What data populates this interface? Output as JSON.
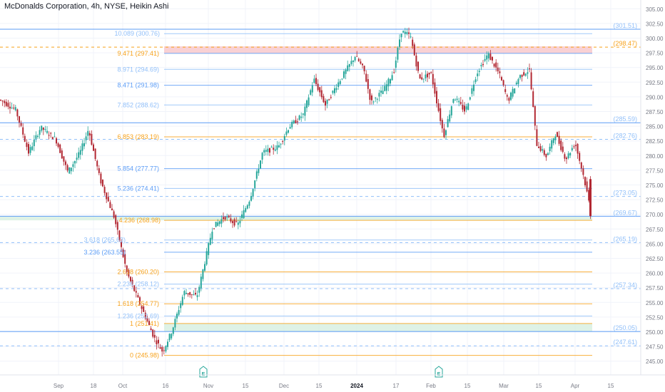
{
  "header": {
    "title": "McDonalds Corporation, 4h, NYSE, Heikin Ashi"
  },
  "colors": {
    "up": "#26a69a",
    "down": "#b22833",
    "blue": "#5b9cf6",
    "orange": "#f7a21b",
    "light_blue": "#90bff9",
    "grid": "#f0f3fa",
    "axis_text": "#787b86"
  },
  "chart_data": {
    "type": "candlestick",
    "title": "McDonalds Corporation, 4h, NYSE, Heikin Ashi",
    "ylim": [
      243.75,
      306.25
    ],
    "y_ticks": [
      "305.00",
      "302.50",
      "300.00",
      "297.50",
      "295.00",
      "292.50",
      "290.00",
      "287.50",
      "285.00",
      "282.50",
      "280.00",
      "277.50",
      "275.00",
      "272.50",
      "270.00",
      "267.50",
      "265.00",
      "262.50",
      "260.00",
      "257.50",
      "255.00",
      "252.50",
      "250.00",
      "247.50",
      "245.00"
    ],
    "x_ticks": [
      "Sep",
      "18",
      "Oct",
      "16",
      "Nov",
      "15",
      "Dec",
      "15",
      "2024",
      "17",
      "Feb",
      "15",
      "Mar",
      "15",
      "Apr",
      "15"
    ],
    "fib_levels": [
      {
        "label": "10.089 (300.76)",
        "value": 300.76,
        "color": "#90bff9",
        "label_color": "#90bff9"
      },
      {
        "label": "9.471 (297.41)",
        "value": 297.41,
        "color": "#5b9cf6",
        "label_color": "#f7a21b"
      },
      {
        "label": "8.971 (294.69)",
        "value": 294.69,
        "color": "#90bff9",
        "label_color": "#90bff9"
      },
      {
        "label": "8.471 (291.98)",
        "value": 291.98,
        "color": "#5b9cf6",
        "label_color": "#5b9cf6"
      },
      {
        "label": "7.852 (288.62)",
        "value": 288.62,
        "color": "#90bff9",
        "label_color": "#90bff9"
      },
      {
        "label": "6.853 (283.19)",
        "value": 283.19,
        "color": "#f7a21b",
        "label_color": "#f7a21b"
      },
      {
        "label": "5.854 (277.77)",
        "value": 277.77,
        "color": "#5b9cf6",
        "label_color": "#5b9cf6"
      },
      {
        "label": "5.236 (274.41)",
        "value": 274.41,
        "color": "#90bff9",
        "label_color": "#5b9cf6"
      },
      {
        "label": "4.236 (268.98)",
        "value": 268.98,
        "color": "#f7a21b",
        "label_color": "#f7a21b"
      },
      {
        "label": "3.618 (265.63)",
        "value": 265.63,
        "color": "#90bff9",
        "label_color": "#90bff9"
      },
      {
        "label": "3.236 (263.55)",
        "value": 263.55,
        "color": "#5b9cf6",
        "label_color": "#5b9cf6"
      },
      {
        "label": "2.618 (260.20)",
        "value": 260.2,
        "color": "#f7a21b",
        "label_color": "#f7a21b"
      },
      {
        "label": "2.236 (258.12)",
        "value": 258.12,
        "color": "#90bff9",
        "label_color": "#90bff9"
      },
      {
        "label": "1.618 (254.77)",
        "value": 254.77,
        "color": "#f7a21b",
        "label_color": "#f7a21b"
      },
      {
        "label": "1.236 (252.69)",
        "value": 252.69,
        "color": "#90bff9",
        "label_color": "#90bff9"
      },
      {
        "label": "1 (251.41)",
        "value": 251.41,
        "color": "#f7a21b",
        "label_color": "#f7a21b"
      },
      {
        "label": "0 (245.98)",
        "value": 245.98,
        "color": "#f7a21b",
        "label_color": "#f7a21b"
      }
    ],
    "full_lines": [
      {
        "value": 301.51,
        "color": "#5b9cf6"
      },
      {
        "value": 285.59,
        "color": "#5b9cf6"
      },
      {
        "value": 269.67,
        "color": "#5b9cf6"
      },
      {
        "value": 250.05,
        "color": "#5b9cf6"
      }
    ],
    "dashed_lines": [
      {
        "value": 298.47,
        "color": "#f7a21b"
      },
      {
        "value": 282.76,
        "color": "#90bff9"
      },
      {
        "value": 273.05,
        "color": "#90bff9"
      },
      {
        "value": 265.19,
        "color": "#90bff9"
      },
      {
        "value": 257.34,
        "color": "#90bff9"
      },
      {
        "value": 247.61,
        "color": "#90bff9"
      }
    ],
    "right_labels": [
      {
        "label": "(301.51)",
        "value": 301.51,
        "color": "#90bff9"
      },
      {
        "label": "(298.47)",
        "value": 298.47,
        "color": "#f7a21b"
      },
      {
        "label": "(285.59)",
        "value": 285.59,
        "color": "#90bff9"
      },
      {
        "label": "(282.76)",
        "value": 282.76,
        "color": "#90bff9"
      },
      {
        "label": "(273.05)",
        "value": 273.05,
        "color": "#90bff9"
      },
      {
        "label": "(269.67)",
        "value": 269.67,
        "color": "#90bff9"
      },
      {
        "label": "(265.19)",
        "value": 265.19,
        "color": "#90bff9"
      },
      {
        "label": "(257.34)",
        "value": 257.34,
        "color": "#90bff9"
      },
      {
        "label": "(250.05)",
        "value": 250.05,
        "color": "#90bff9"
      },
      {
        "label": "(247.61)",
        "value": 247.61,
        "color": "#90bff9"
      }
    ],
    "zones": [
      {
        "from": 297.41,
        "to": 298.6,
        "color": "#f7c6c9"
      },
      {
        "from": 268.98,
        "to": 269.67,
        "color": "#d6efe0"
      },
      {
        "from": 250.05,
        "to": 251.41,
        "color": "#d6efe0"
      }
    ],
    "earnings_markers": [
      "E",
      "E"
    ],
    "price_path": [
      {
        "x": 0,
        "v": 289.5
      },
      {
        "x": 22,
        "v": 287.8
      },
      {
        "x": 40,
        "v": 280.5
      },
      {
        "x": 57,
        "v": 284.8
      },
      {
        "x": 78,
        "v": 282.8
      },
      {
        "x": 95,
        "v": 277.2
      },
      {
        "x": 112,
        "v": 280.5
      },
      {
        "x": 124,
        "v": 284.5
      },
      {
        "x": 140,
        "v": 276.0
      },
      {
        "x": 160,
        "v": 269.5
      },
      {
        "x": 178,
        "v": 260.0
      },
      {
        "x": 198,
        "v": 254.2
      },
      {
        "x": 216,
        "v": 249.0
      },
      {
        "x": 228,
        "v": 246.6
      },
      {
        "x": 241,
        "v": 250.2
      },
      {
        "x": 258,
        "v": 256.8
      },
      {
        "x": 276,
        "v": 256.0
      },
      {
        "x": 298,
        "v": 267.8
      },
      {
        "x": 315,
        "v": 269.6
      },
      {
        "x": 333,
        "v": 268.2
      },
      {
        "x": 350,
        "v": 272.6
      },
      {
        "x": 368,
        "v": 280.5
      },
      {
        "x": 390,
        "v": 281.5
      },
      {
        "x": 405,
        "v": 284.9
      },
      {
        "x": 425,
        "v": 287.0
      },
      {
        "x": 440,
        "v": 293.0
      },
      {
        "x": 456,
        "v": 288.6
      },
      {
        "x": 472,
        "v": 292.0
      },
      {
        "x": 498,
        "v": 297.0
      },
      {
        "x": 510,
        "v": 294.6
      },
      {
        "x": 520,
        "v": 289.0
      },
      {
        "x": 538,
        "v": 291.2
      },
      {
        "x": 552,
        "v": 294.4
      },
      {
        "x": 562,
        "v": 301.2
      },
      {
        "x": 575,
        "v": 300.4
      },
      {
        "x": 588,
        "v": 293.0
      },
      {
        "x": 604,
        "v": 294.0
      },
      {
        "x": 622,
        "v": 283.3
      },
      {
        "x": 636,
        "v": 290.1
      },
      {
        "x": 652,
        "v": 287.5
      },
      {
        "x": 668,
        "v": 294.0
      },
      {
        "x": 684,
        "v": 297.3
      },
      {
        "x": 700,
        "v": 293.8
      },
      {
        "x": 712,
        "v": 289.3
      },
      {
        "x": 728,
        "v": 293.5
      },
      {
        "x": 742,
        "v": 294.6
      },
      {
        "x": 752,
        "v": 282.0
      },
      {
        "x": 766,
        "v": 279.8
      },
      {
        "x": 778,
        "v": 283.8
      },
      {
        "x": 793,
        "v": 279.4
      },
      {
        "x": 806,
        "v": 282.2
      },
      {
        "x": 818,
        "v": 276.4
      },
      {
        "x": 829,
        "v": 270.0
      }
    ]
  }
}
